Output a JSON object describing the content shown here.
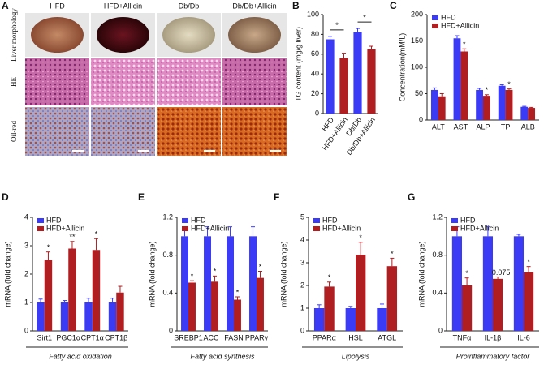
{
  "chart_data": [
    {
      "type": "image-grid",
      "label": "A",
      "columns": [
        "HFD",
        "HFD+Allicin",
        "Db/Db",
        "Db/Db+Allicin"
      ],
      "rows": [
        "Liver morphology",
        "HE",
        "Oil-red"
      ]
    },
    {
      "type": "bar",
      "label": "B",
      "ylabel": "TG content (mg/g liver)",
      "categories": [
        "HFD",
        "HFD+Allicin",
        "Db/Db",
        "Db/Db+Allicin"
      ],
      "series": [
        {
          "colors": [
            "#3b3bf5",
            "#b01e22",
            "#3b3bf5",
            "#b01e22"
          ],
          "values": [
            75,
            56,
            82,
            65
          ],
          "errors": [
            3,
            5,
            4,
            3
          ]
        }
      ],
      "annotations": [
        "*",
        "*"
      ],
      "ylim": [
        0,
        100
      ],
      "yticks": [
        0,
        20,
        40,
        60,
        80,
        100
      ]
    },
    {
      "type": "bar",
      "label": "C",
      "ylabel": "Concentration(mM/L)",
      "categories": [
        "ALT",
        "AST",
        "ALP",
        "TP",
        "ALB"
      ],
      "series": [
        {
          "name": "HFD",
          "color": "#3b3bf5",
          "values": [
            57,
            155,
            57,
            65,
            25
          ],
          "errors": [
            4,
            5,
            3,
            2,
            1
          ]
        },
        {
          "name": "HFD+Allicin",
          "color": "#b01e22",
          "values": [
            45,
            130,
            46,
            57,
            23
          ],
          "errors": [
            5,
            5,
            2,
            2,
            1
          ],
          "annotations": [
            null,
            "*",
            "*",
            "*",
            null
          ]
        }
      ],
      "ylim": [
        0,
        200
      ],
      "yticks": [
        0,
        50,
        100,
        150,
        200
      ]
    },
    {
      "type": "bar",
      "label": "D",
      "ylabel": "mRNA (fold change)",
      "xlabel": "Fatty acid oxidation",
      "categories": [
        "Sirt1",
        "PGC1α",
        "CPT1α",
        "CPT1β"
      ],
      "series": [
        {
          "name": "HFD",
          "color": "#3b3bf5",
          "values": [
            1,
            1,
            1,
            1
          ],
          "errors": [
            0.12,
            0.07,
            0.15,
            0.15
          ]
        },
        {
          "name": "HFD+Allicin",
          "color": "#b01e22",
          "values": [
            2.5,
            2.9,
            2.85,
            1.35
          ],
          "errors": [
            0.28,
            0.25,
            0.4,
            0.22
          ],
          "annotations": [
            "*",
            "**",
            "*",
            null
          ]
        }
      ],
      "ylim": [
        0,
        4
      ],
      "yticks": [
        0,
        1,
        2,
        3,
        4
      ]
    },
    {
      "type": "bar",
      "label": "E",
      "ylabel": "mRNA (fold change)",
      "xlabel": "Fatty acid synthesis",
      "categories": [
        "SREBP1",
        "ACC",
        "FASN",
        "PPARγ"
      ],
      "series": [
        {
          "name": "HFD",
          "color": "#3b3bf5",
          "values": [
            1,
            1,
            1,
            1
          ],
          "errors": [
            0.1,
            0.1,
            0.1,
            0.1
          ]
        },
        {
          "name": "HFD+Allicin",
          "color": "#b01e22",
          "values": [
            0.51,
            0.52,
            0.33,
            0.56
          ],
          "errors": [
            0.02,
            0.06,
            0.03,
            0.07
          ],
          "annotations": [
            "*",
            "*",
            "*",
            "*"
          ]
        }
      ],
      "ylim": [
        0,
        1.2
      ],
      "yticks": [
        0,
        0.4,
        0.8,
        1.2
      ]
    },
    {
      "type": "bar",
      "label": "F",
      "ylabel": "mRNA (fold change)",
      "xlabel": "Lipolysis",
      "categories": [
        "PPARα",
        "HSL",
        "ATGL"
      ],
      "series": [
        {
          "name": "HFD",
          "color": "#3b3bf5",
          "values": [
            1,
            1,
            1
          ],
          "errors": [
            0.15,
            0.08,
            0.18
          ]
        },
        {
          "name": "HFD+Allicin",
          "color": "#b01e22",
          "values": [
            1.95,
            3.35,
            2.85
          ],
          "errors": [
            0.2,
            0.55,
            0.35
          ],
          "annotations": [
            "*",
            "*",
            "*"
          ]
        }
      ],
      "ylim": [
        0,
        5
      ],
      "yticks": [
        0,
        1,
        2,
        3,
        4,
        5
      ]
    },
    {
      "type": "bar",
      "label": "G",
      "ylabel": "mRNA (fold change)",
      "xlabel": "Proinflammatory factor",
      "categories": [
        "TNFα",
        "IL-1β",
        "IL-6"
      ],
      "series": [
        {
          "name": "HFD",
          "color": "#3b3bf5",
          "values": [
            1,
            1,
            1
          ],
          "errors": [
            0.1,
            0.1,
            0.02
          ]
        },
        {
          "name": "HFD+Allicin",
          "color": "#b01e22",
          "values": [
            0.48,
            0.55,
            0.62
          ],
          "errors": [
            0.08,
            0.02,
            0.06
          ],
          "annotations": [
            "*",
            "0.075",
            "*"
          ]
        }
      ],
      "ylim": [
        0,
        1.2
      ],
      "yticks": [
        0,
        0.4,
        0.8,
        1.2
      ]
    }
  ]
}
